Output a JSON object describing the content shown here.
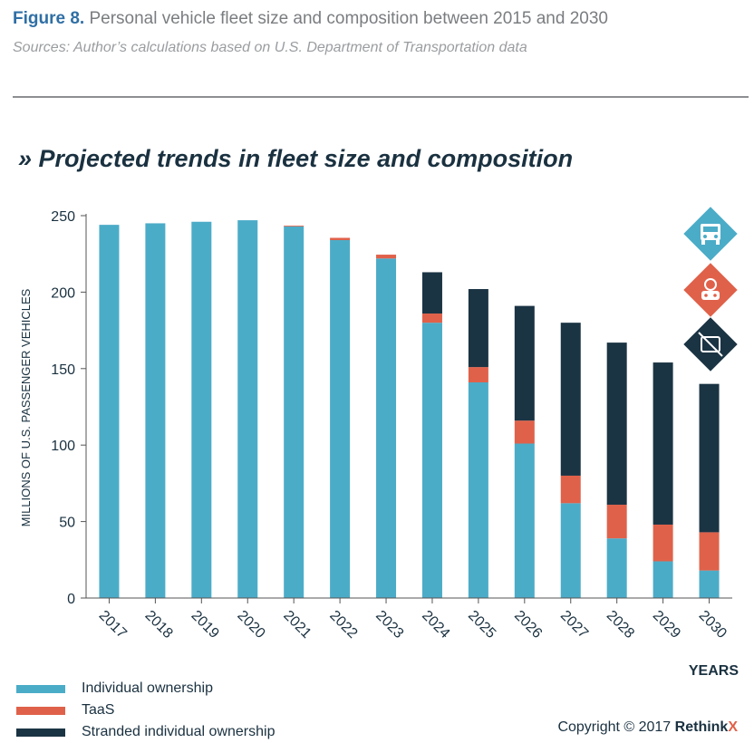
{
  "figure": {
    "number": "Figure 8.",
    "title": "Personal vehicle fleet size and composition between 2015 and 2030",
    "source": "Sources: Author’s calculations based on U.S. Department of Transportation data"
  },
  "chart_heading": "» Projected trends in fleet size and composition",
  "colors": {
    "individual": "#4bacc8",
    "taas": "#e0614a",
    "stranded": "#1b3444",
    "axis": "#555555"
  },
  "chart_data": {
    "type": "bar",
    "stacked": true,
    "categories": [
      "2017",
      "2018",
      "2019",
      "2020",
      "2021",
      "2022",
      "2023",
      "2024",
      "2025",
      "2026",
      "2027",
      "2028",
      "2029",
      "2030"
    ],
    "series": [
      {
        "name": "Individual ownership",
        "values": [
          244,
          245,
          246,
          247,
          243,
          234,
          222,
          180,
          141,
          101,
          62,
          39,
          24,
          18
        ]
      },
      {
        "name": "TaaS",
        "values": [
          0,
          0,
          0,
          0,
          0.5,
          1.5,
          2.5,
          6,
          10,
          15,
          18,
          22,
          24,
          25
        ]
      },
      {
        "name": "Stranded individual ownership",
        "values": [
          0,
          0,
          0,
          0,
          0,
          0,
          0,
          27,
          51,
          75,
          100,
          106,
          106,
          97
        ]
      }
    ],
    "ylabel": "MILLIONS OF U.S. PASSENGER VEHICLES",
    "xlabel": "YEARS",
    "ylim": [
      0,
      250
    ],
    "yticks": [
      0,
      50,
      100,
      150,
      200,
      250
    ],
    "grid": false,
    "legend_position": "bottom-left"
  },
  "icons": [
    {
      "name": "individual-ownership-icon",
      "color": "#4bacc8"
    },
    {
      "name": "taas-icon",
      "color": "#e0614a"
    },
    {
      "name": "stranded-ownership-icon",
      "color": "#1b3444"
    }
  ],
  "copyright": {
    "prefix": "Copyright © 2017 ",
    "brand": "Rethink",
    "brand_x": "X"
  }
}
